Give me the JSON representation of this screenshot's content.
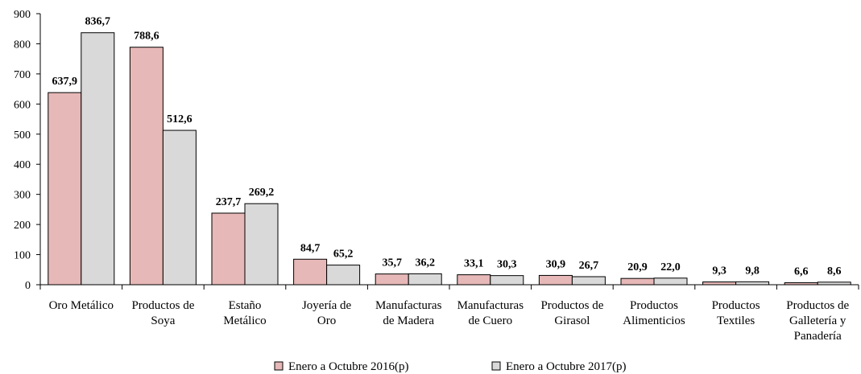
{
  "chart_data": {
    "type": "bar",
    "title": "",
    "xlabel": "",
    "ylabel": "",
    "ylim": [
      0,
      900
    ],
    "yticks": [
      0,
      100,
      200,
      300,
      400,
      500,
      600,
      700,
      800,
      900
    ],
    "yticklabels": [
      "0",
      "100",
      "200",
      "300",
      "400",
      "500",
      "600",
      "700",
      "800",
      "900"
    ],
    "grid": false,
    "legend_position": "bottom",
    "categories": [
      [
        "Oro Metálico"
      ],
      [
        "Productos de",
        "Soya"
      ],
      [
        "Estaño",
        "Metálico"
      ],
      [
        "Joyería de",
        "Oro"
      ],
      [
        "Manufacturas",
        "de Madera"
      ],
      [
        "Manufacturas",
        "de Cuero"
      ],
      [
        "Productos de",
        "Girasol"
      ],
      [
        "Productos",
        "Alimenticios"
      ],
      [
        "Productos",
        "Textiles"
      ],
      [
        "Productos de",
        "Galletería y",
        "Panadería"
      ]
    ],
    "series": [
      {
        "name": "Enero a Octubre 2016(p)",
        "color": "#e6b8b7",
        "values": [
          637.9,
          788.6,
          237.7,
          84.7,
          35.7,
          33.1,
          30.9,
          20.9,
          9.3,
          6.6
        ],
        "labels": [
          "637,9",
          "788,6",
          "237,7",
          "84,7",
          "35,7",
          "33,1",
          "30,9",
          "20,9",
          "9,3",
          "6,6"
        ]
      },
      {
        "name": "Enero a Octubre 2017(p)",
        "color": "#d9d9d9",
        "values": [
          836.7,
          512.6,
          269.2,
          65.2,
          36.2,
          30.3,
          26.7,
          22.0,
          9.8,
          8.6
        ],
        "labels": [
          "836,7",
          "512,6",
          "269,2",
          "65,2",
          "36,2",
          "30,3",
          "26,7",
          "22,0",
          "9,8",
          "8,6"
        ]
      }
    ]
  }
}
